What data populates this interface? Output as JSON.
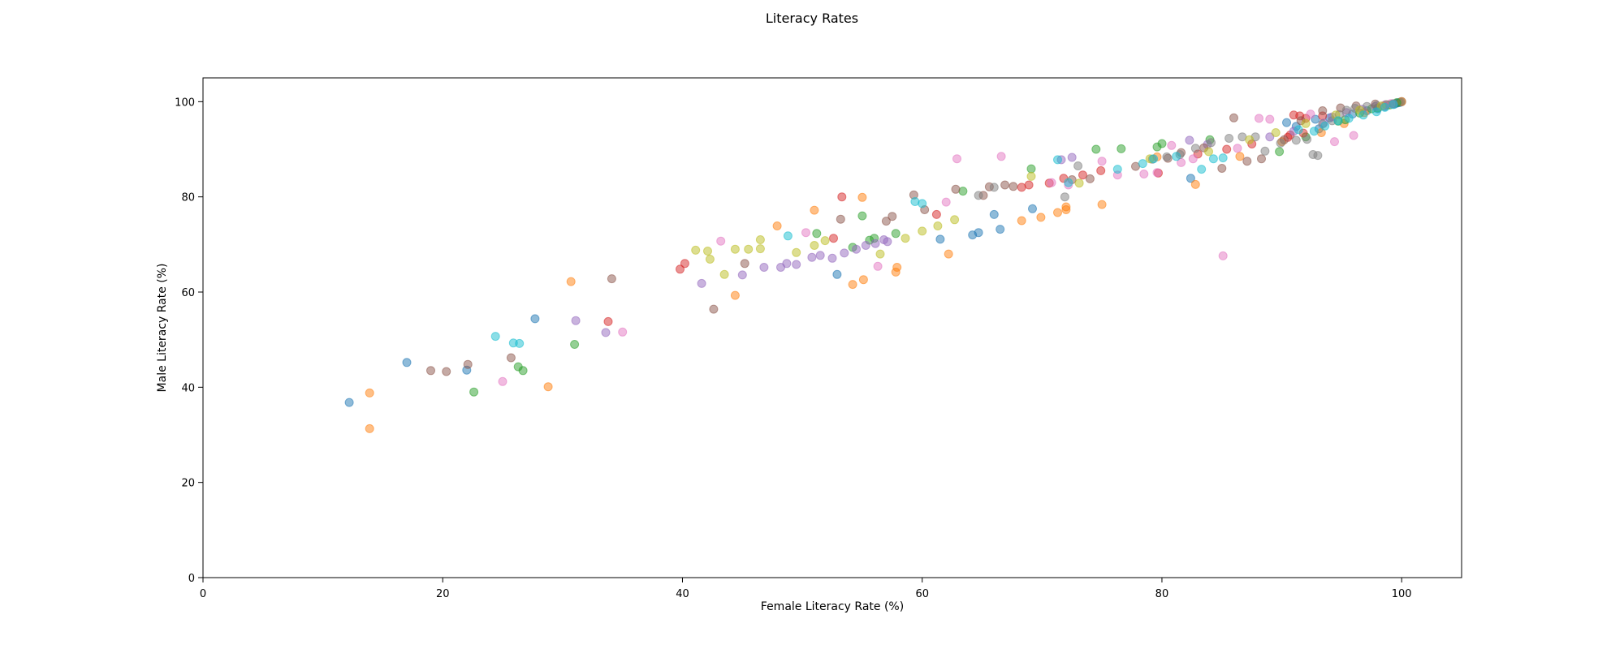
{
  "chart_data": {
    "type": "scatter",
    "title": "Literacy Rates",
    "xlabel": "Female Literacy Rate (%)",
    "ylabel": "Male Literacy Rate (%)",
    "xlim": [
      0,
      105
    ],
    "ylim": [
      0,
      105
    ],
    "xticks": [
      "0",
      "20",
      "40",
      "60",
      "80",
      "100"
    ],
    "yticks": [
      "0",
      "20",
      "40",
      "60",
      "80",
      "100"
    ],
    "grid": false,
    "palette": [
      "#1f77b4",
      "#ff7f0e",
      "#2ca02c",
      "#d62728",
      "#9467bd",
      "#8c564b",
      "#e377c2",
      "#7f7f7f",
      "#bcbd22",
      "#17becf"
    ],
    "points": [
      [
        12.2,
        36.8,
        0
      ],
      [
        17.0,
        45.2,
        0
      ],
      [
        22.0,
        43.6,
        0
      ],
      [
        27.7,
        54.4,
        0
      ],
      [
        52.9,
        63.7,
        0
      ],
      [
        61.5,
        71.1,
        0
      ],
      [
        64.2,
        72.0,
        0
      ],
      [
        64.7,
        72.5,
        0
      ],
      [
        66.0,
        76.3,
        0
      ],
      [
        66.5,
        73.2,
        0
      ],
      [
        69.2,
        77.5,
        0
      ],
      [
        82.4,
        83.9,
        0
      ],
      [
        90.4,
        95.6,
        0
      ],
      [
        92.8,
        96.3,
        0
      ],
      [
        94.0,
        96.6,
        0
      ],
      [
        95.9,
        97.4,
        0
      ],
      [
        97.1,
        98.1,
        0
      ],
      [
        98.6,
        99.0,
        0
      ],
      [
        99.4,
        99.5,
        0
      ],
      [
        99.6,
        99.7,
        0
      ],
      [
        99.8,
        99.8,
        0
      ],
      [
        100.0,
        100.0,
        0
      ],
      [
        99.9,
        99.9,
        0
      ],
      [
        98.0,
        98.5,
        0
      ],
      [
        91.2,
        94.8,
        0
      ],
      [
        93.1,
        94.3,
        0
      ],
      [
        13.9,
        31.3,
        1
      ],
      [
        13.9,
        38.8,
        1
      ],
      [
        28.8,
        40.1,
        1
      ],
      [
        30.7,
        62.2,
        1
      ],
      [
        44.4,
        59.3,
        1
      ],
      [
        47.9,
        73.9,
        1
      ],
      [
        51.0,
        77.2,
        1
      ],
      [
        54.2,
        61.6,
        1
      ],
      [
        55.1,
        62.6,
        1
      ],
      [
        55.0,
        79.9,
        1
      ],
      [
        57.8,
        64.2,
        1
      ],
      [
        57.9,
        65.2,
        1
      ],
      [
        62.2,
        68.0,
        1
      ],
      [
        68.3,
        75.0,
        1
      ],
      [
        69.9,
        75.7,
        1
      ],
      [
        71.3,
        76.7,
        1
      ],
      [
        72.0,
        77.3,
        1
      ],
      [
        72.0,
        77.9,
        1
      ],
      [
        75.0,
        78.4,
        1
      ],
      [
        79.6,
        88.4,
        1
      ],
      [
        82.8,
        82.6,
        1
      ],
      [
        86.5,
        88.5,
        1
      ],
      [
        90.0,
        91.6,
        1
      ],
      [
        93.3,
        93.5,
        1
      ],
      [
        95.2,
        95.4,
        1
      ],
      [
        96.9,
        97.7,
        1
      ],
      [
        98.8,
        99.3,
        1
      ],
      [
        100.0,
        100.0,
        1
      ],
      [
        22.6,
        39.0,
        2
      ],
      [
        26.3,
        44.3,
        2
      ],
      [
        26.7,
        43.5,
        2
      ],
      [
        31.0,
        49.0,
        2
      ],
      [
        51.2,
        72.3,
        2
      ],
      [
        55.0,
        76.0,
        2
      ],
      [
        54.2,
        69.4,
        2
      ],
      [
        55.6,
        70.9,
        2
      ],
      [
        56.0,
        71.3,
        2
      ],
      [
        57.8,
        72.3,
        2
      ],
      [
        63.4,
        81.2,
        2
      ],
      [
        69.1,
        85.9,
        2
      ],
      [
        74.5,
        90.0,
        2
      ],
      [
        76.6,
        90.1,
        2
      ],
      [
        79.6,
        90.5,
        2
      ],
      [
        80.0,
        91.2,
        2
      ],
      [
        84.0,
        92.0,
        2
      ],
      [
        89.8,
        89.5,
        2
      ],
      [
        92.0,
        92.6,
        2
      ],
      [
        94.7,
        95.9,
        2
      ],
      [
        95.3,
        96.2,
        2
      ],
      [
        96.5,
        97.6,
        2
      ],
      [
        97.5,
        98.5,
        2
      ],
      [
        98.0,
        98.7,
        2
      ],
      [
        99.0,
        99.3,
        2
      ],
      [
        99.6,
        99.8,
        2
      ],
      [
        39.8,
        64.8,
        3
      ],
      [
        40.2,
        66.0,
        3
      ],
      [
        52.6,
        71.3,
        3
      ],
      [
        53.3,
        80.0,
        3
      ],
      [
        33.8,
        53.8,
        3
      ],
      [
        61.2,
        76.3,
        3
      ],
      [
        68.3,
        82.0,
        3
      ],
      [
        68.9,
        82.5,
        3
      ],
      [
        70.6,
        82.9,
        3
      ],
      [
        71.8,
        83.9,
        3
      ],
      [
        73.4,
        84.6,
        3
      ],
      [
        74.9,
        85.5,
        3
      ],
      [
        79.7,
        85.0,
        3
      ],
      [
        83.0,
        89.0,
        3
      ],
      [
        85.4,
        90.0,
        3
      ],
      [
        87.5,
        91.1,
        3
      ],
      [
        90.5,
        92.5,
        3
      ],
      [
        91.0,
        97.2,
        3
      ],
      [
        91.8,
        93.4,
        3
      ],
      [
        91.5,
        97.0,
        3
      ],
      [
        92.0,
        96.5,
        3
      ],
      [
        93.4,
        97.0,
        3
      ],
      [
        90.7,
        93.0,
        3
      ],
      [
        31.1,
        54.0,
        4
      ],
      [
        33.6,
        51.5,
        4
      ],
      [
        41.6,
        61.8,
        4
      ],
      [
        45.0,
        63.6,
        4
      ],
      [
        46.8,
        65.2,
        4
      ],
      [
        48.2,
        65.2,
        4
      ],
      [
        48.7,
        66.0,
        4
      ],
      [
        49.5,
        65.8,
        4
      ],
      [
        50.8,
        67.3,
        4
      ],
      [
        51.5,
        67.7,
        4
      ],
      [
        52.5,
        67.1,
        4
      ],
      [
        53.5,
        68.2,
        4
      ],
      [
        54.5,
        69.0,
        4
      ],
      [
        55.3,
        69.8,
        4
      ],
      [
        56.1,
        70.2,
        4
      ],
      [
        56.8,
        71.0,
        4
      ],
      [
        57.1,
        70.6,
        4
      ],
      [
        71.6,
        87.8,
        4
      ],
      [
        72.5,
        88.3,
        4
      ],
      [
        82.3,
        91.9,
        4
      ],
      [
        83.8,
        91.0,
        4
      ],
      [
        89.0,
        92.6,
        4
      ],
      [
        91.0,
        93.8,
        4
      ],
      [
        93.5,
        95.5,
        4
      ],
      [
        94.2,
        96.8,
        4
      ],
      [
        95.4,
        97.7,
        4
      ],
      [
        96.7,
        98.4,
        4
      ],
      [
        97.8,
        99.0,
        4
      ],
      [
        98.5,
        99.1,
        4
      ],
      [
        99.3,
        99.5,
        4
      ],
      [
        19.0,
        43.5,
        5
      ],
      [
        20.3,
        43.3,
        5
      ],
      [
        22.1,
        44.8,
        5
      ],
      [
        25.7,
        46.2,
        5
      ],
      [
        34.1,
        62.8,
        5
      ],
      [
        42.6,
        56.4,
        5
      ],
      [
        45.2,
        66.0,
        5
      ],
      [
        53.2,
        75.3,
        5
      ],
      [
        57.0,
        74.9,
        5
      ],
      [
        57.5,
        75.9,
        5
      ],
      [
        59.3,
        80.4,
        5
      ],
      [
        60.2,
        77.3,
        5
      ],
      [
        62.8,
        81.6,
        5
      ],
      [
        65.1,
        80.3,
        5
      ],
      [
        65.6,
        82.1,
        5
      ],
      [
        66.9,
        82.5,
        5
      ],
      [
        67.6,
        82.2,
        5
      ],
      [
        72.5,
        83.6,
        5
      ],
      [
        74.0,
        83.8,
        5
      ],
      [
        77.8,
        86.4,
        5
      ],
      [
        80.5,
        88.1,
        5
      ],
      [
        81.6,
        89.3,
        5
      ],
      [
        83.5,
        90.3,
        5
      ],
      [
        85.0,
        86.0,
        5
      ],
      [
        86.0,
        96.6,
        5
      ],
      [
        87.1,
        87.5,
        5
      ],
      [
        88.3,
        88.0,
        5
      ],
      [
        90.2,
        92.0,
        5
      ],
      [
        91.6,
        96.0,
        5
      ],
      [
        93.4,
        98.1,
        5
      ],
      [
        94.9,
        98.7,
        5
      ],
      [
        96.2,
        99.1,
        5
      ],
      [
        97.8,
        99.5,
        5
      ],
      [
        25.0,
        41.2,
        6
      ],
      [
        35.0,
        51.6,
        6
      ],
      [
        43.2,
        70.7,
        6
      ],
      [
        50.3,
        72.5,
        6
      ],
      [
        56.3,
        65.4,
        6
      ],
      [
        62.0,
        78.9,
        6
      ],
      [
        62.9,
        88.0,
        6
      ],
      [
        66.6,
        88.5,
        6
      ],
      [
        70.8,
        83.0,
        6
      ],
      [
        72.2,
        82.5,
        6
      ],
      [
        75.0,
        87.5,
        6
      ],
      [
        76.3,
        84.6,
        6
      ],
      [
        78.5,
        84.8,
        6
      ],
      [
        79.6,
        85.1,
        6
      ],
      [
        80.8,
        90.8,
        6
      ],
      [
        81.6,
        87.2,
        6
      ],
      [
        82.6,
        88.0,
        6
      ],
      [
        85.1,
        67.6,
        6
      ],
      [
        86.3,
        90.2,
        6
      ],
      [
        88.1,
        96.5,
        6
      ],
      [
        89.0,
        96.3,
        6
      ],
      [
        92.4,
        97.4,
        6
      ],
      [
        94.4,
        91.6,
        6
      ],
      [
        96.0,
        92.9,
        6
      ],
      [
        98.6,
        99.3,
        6
      ],
      [
        99.1,
        99.6,
        6
      ],
      [
        64.7,
        80.3,
        7
      ],
      [
        66.0,
        82.0,
        7
      ],
      [
        71.9,
        80.0,
        7
      ],
      [
        73.0,
        86.5,
        7
      ],
      [
        79.2,
        87.9,
        7
      ],
      [
        80.4,
        88.4,
        7
      ],
      [
        81.5,
        88.9,
        7
      ],
      [
        82.8,
        90.2,
        7
      ],
      [
        84.1,
        91.4,
        7
      ],
      [
        85.6,
        92.3,
        7
      ],
      [
        86.7,
        92.6,
        7
      ],
      [
        87.8,
        92.6,
        7
      ],
      [
        88.6,
        89.6,
        7
      ],
      [
        89.9,
        91.3,
        7
      ],
      [
        91.2,
        91.9,
        7
      ],
      [
        92.1,
        92.1,
        7
      ],
      [
        92.6,
        88.9,
        7
      ],
      [
        93.0,
        88.7,
        7
      ],
      [
        93.4,
        95.3,
        7
      ],
      [
        94.2,
        96.0,
        7
      ],
      [
        94.8,
        97.3,
        7
      ],
      [
        95.4,
        98.2,
        7
      ],
      [
        96.1,
        98.6,
        7
      ],
      [
        97.1,
        99.0,
        7
      ],
      [
        97.9,
        99.2,
        7
      ],
      [
        98.7,
        99.4,
        7
      ],
      [
        99.3,
        99.6,
        7
      ],
      [
        41.1,
        68.8,
        8
      ],
      [
        42.1,
        68.6,
        8
      ],
      [
        42.3,
        66.9,
        8
      ],
      [
        43.5,
        63.7,
        8
      ],
      [
        44.4,
        69.0,
        8
      ],
      [
        45.5,
        69.0,
        8
      ],
      [
        46.5,
        71.0,
        8
      ],
      [
        46.5,
        69.1,
        8
      ],
      [
        49.5,
        68.3,
        8
      ],
      [
        51.0,
        69.8,
        8
      ],
      [
        51.9,
        70.8,
        8
      ],
      [
        56.5,
        68.0,
        8
      ],
      [
        58.6,
        71.3,
        8
      ],
      [
        60.0,
        72.8,
        8
      ],
      [
        61.3,
        73.9,
        8
      ],
      [
        62.7,
        75.2,
        8
      ],
      [
        69.1,
        84.3,
        8
      ],
      [
        73.1,
        82.9,
        8
      ],
      [
        79.0,
        88.0,
        8
      ],
      [
        83.9,
        89.5,
        8
      ],
      [
        87.3,
        92.0,
        8
      ],
      [
        89.5,
        93.5,
        8
      ],
      [
        92.0,
        95.4,
        8
      ],
      [
        94.5,
        97.2,
        8
      ],
      [
        96.5,
        98.2,
        8
      ],
      [
        98.3,
        99.1,
        8
      ],
      [
        24.4,
        50.7,
        9
      ],
      [
        25.9,
        49.3,
        9
      ],
      [
        26.4,
        49.2,
        9
      ],
      [
        48.8,
        71.8,
        9
      ],
      [
        59.4,
        79.0,
        9
      ],
      [
        60.0,
        78.6,
        9
      ],
      [
        71.3,
        87.8,
        9
      ],
      [
        72.2,
        83.0,
        9
      ],
      [
        76.3,
        85.8,
        9
      ],
      [
        78.4,
        87.0,
        9
      ],
      [
        79.3,
        88.0,
        9
      ],
      [
        81.2,
        88.5,
        9
      ],
      [
        83.3,
        85.8,
        9
      ],
      [
        84.3,
        88.0,
        9
      ],
      [
        85.1,
        88.2,
        9
      ],
      [
        91.4,
        94.1,
        9
      ],
      [
        92.7,
        93.8,
        9
      ],
      [
        93.6,
        94.9,
        9
      ],
      [
        94.7,
        96.0,
        9
      ],
      [
        95.6,
        96.5,
        9
      ],
      [
        96.8,
        97.2,
        9
      ],
      [
        97.9,
        97.9,
        9
      ],
      [
        98.6,
        98.8,
        9
      ],
      [
        99.3,
        99.4,
        9
      ]
    ]
  }
}
